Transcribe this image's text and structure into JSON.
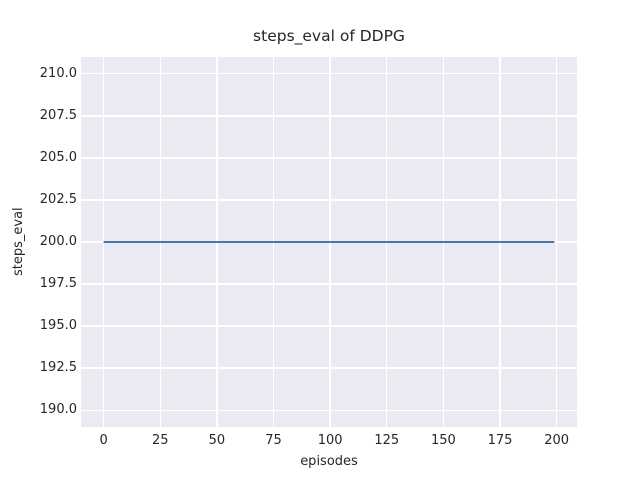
{
  "chart_data": {
    "type": "line",
    "title": "steps_eval of DDPG",
    "xlabel": "episodes",
    "ylabel": "steps_eval",
    "series": [
      {
        "name": "steps_eval of DDPG",
        "color": "#4c72b0",
        "x": [
          0,
          199
        ],
        "y": [
          200.0,
          200.0
        ]
      }
    ],
    "xlim": [
      -10,
      209
    ],
    "ylim": [
      189,
      211
    ],
    "xticks": [
      0,
      25,
      50,
      75,
      100,
      125,
      150,
      175,
      200
    ],
    "xtick_labels": [
      "0",
      "25",
      "50",
      "75",
      "100",
      "125",
      "150",
      "175",
      "200"
    ],
    "yticks": [
      190.0,
      192.5,
      195.0,
      197.5,
      200.0,
      202.5,
      205.0,
      207.5,
      210.0
    ],
    "ytick_labels": [
      "190.0",
      "192.5",
      "195.0",
      "197.5",
      "200.0",
      "202.5",
      "205.0",
      "207.5",
      "210.0"
    ],
    "grid": true,
    "legend_position": "none",
    "style": {
      "figure_background": "#ffffff",
      "plot_background": "#eaeaf2",
      "grid_color": "#ffffff",
      "text_color": "#262626",
      "line_width": 2
    }
  }
}
